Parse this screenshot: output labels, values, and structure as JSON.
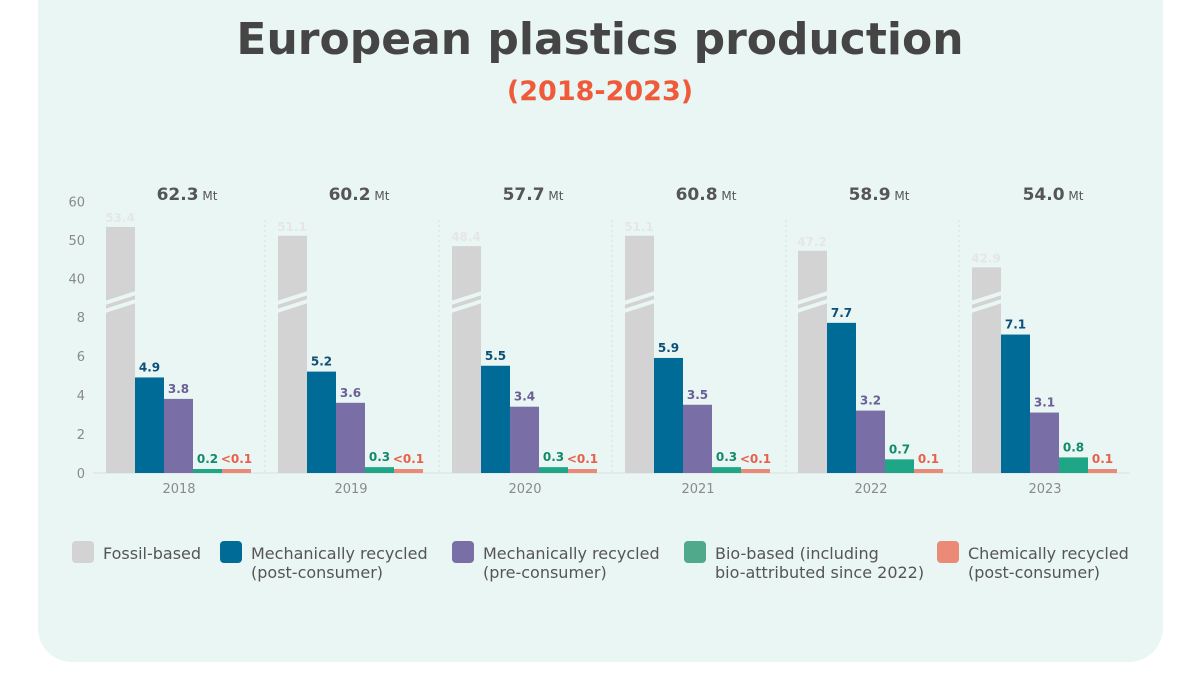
{
  "chart_data": {
    "type": "bar",
    "title": "European plastics production",
    "subtitle": "(2018-2023)",
    "categories": [
      "2018",
      "2019",
      "2020",
      "2021",
      "2022",
      "2023"
    ],
    "totals": [
      {
        "value": "62.3",
        "unit": "Mt"
      },
      {
        "value": "60.2",
        "unit": "Mt"
      },
      {
        "value": "57.7",
        "unit": "Mt"
      },
      {
        "value": "60.8",
        "unit": "Mt"
      },
      {
        "value": "58.9",
        "unit": "Mt"
      },
      {
        "value": "54.0",
        "unit": "Mt"
      }
    ],
    "y_ticks_lower": [
      0,
      2,
      4,
      6,
      8
    ],
    "y_ticks_upper": [
      40,
      50,
      60
    ],
    "axis_break": "between 8 and 40",
    "series": [
      {
        "name": "Fossil-based",
        "color": "#d3d3d3",
        "label_color": "#e6e6e6",
        "values": [
          53.4,
          51.1,
          48.4,
          51.1,
          47.2,
          42.9
        ],
        "labels": [
          "53.4",
          "51.1",
          "48.4",
          "51.1",
          "47.2",
          "42.9"
        ]
      },
      {
        "name": "Mechanically recycled (post-consumer)",
        "color": "#006b96",
        "label_color": "#0d4f78",
        "values": [
          4.9,
          5.2,
          5.5,
          5.9,
          7.7,
          7.1
        ],
        "labels": [
          "4.9",
          "5.2",
          "5.5",
          "5.9",
          "7.7",
          "7.1"
        ]
      },
      {
        "name": "Mechanically recycled (pre-consumer)",
        "color": "#7a6ea6",
        "label_color": "#6a5f98",
        "values": [
          3.8,
          3.6,
          3.4,
          3.5,
          3.2,
          3.1
        ],
        "labels": [
          "3.8",
          "3.6",
          "3.4",
          "3.5",
          "3.2",
          "3.1"
        ]
      },
      {
        "name": "Bio-based (including bio-attributed since 2022)",
        "color": "#1ea686",
        "label_color": "#138a6c",
        "values": [
          0.2,
          0.3,
          0.3,
          0.3,
          0.7,
          0.8
        ],
        "labels": [
          "0.2",
          "0.3",
          "0.3",
          "0.3",
          "0.7",
          "0.8"
        ]
      },
      {
        "name": "Chemically recycled (post-consumer)",
        "color": "#ec8a78",
        "label_color": "#e8604c",
        "values": [
          0.05,
          0.05,
          0.05,
          0.05,
          0.1,
          0.1
        ],
        "labels": [
          "<0.1",
          "<0.1",
          "<0.1",
          "<0.1",
          "0.1",
          "0.1"
        ]
      }
    ],
    "legend": [
      {
        "line1": "Fossil-based",
        "line2": "",
        "color": "#d3d3d3"
      },
      {
        "line1": "Mechanically recycled",
        "line2": "(post-consumer)",
        "color": "#006b96"
      },
      {
        "line1": "Mechanically recycled",
        "line2": "(pre-consumer)",
        "color": "#7a6ea6"
      },
      {
        "line1": "Bio-based (including",
        "line2": "bio-attributed since 2022)",
        "color": "#4fa98a"
      },
      {
        "line1": "Chemically recycled",
        "line2": "(post-consumer)",
        "color": "#ec8a78"
      }
    ],
    "colors": {
      "title": "#454545",
      "subtitle": "#ee5a3a",
      "axis_text": "#8a8a8a",
      "total_text": "#555555",
      "grid": "#cfe3de"
    }
  }
}
